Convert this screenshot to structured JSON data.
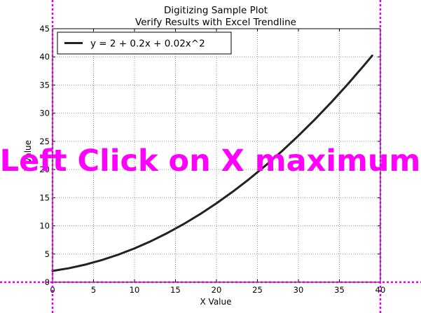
{
  "window": {
    "instruction": "Left Click on X maximum",
    "guide_color": "#dd00dd",
    "instruction_color": "#ff00ff"
  },
  "chart_data": {
    "type": "line",
    "title": "Digitizing Sample Plot",
    "subtitle": "Verify Results with Excel Trendline",
    "xlabel": "X Value",
    "ylabel": "Y Value",
    "xlim": [
      0,
      40
    ],
    "ylim": [
      0,
      45
    ],
    "x_ticks": [
      0,
      5,
      10,
      15,
      20,
      25,
      30,
      35,
      40
    ],
    "y_ticks": [
      0,
      5,
      10,
      15,
      20,
      25,
      30,
      35,
      40,
      45
    ],
    "grid": true,
    "legend_position": "top-left",
    "series": [
      {
        "name": "y = 2 + 0.2x + 0.02x^2",
        "color": "#222222",
        "x": [
          0,
          2,
          4,
          6,
          8,
          10,
          12,
          14,
          16,
          18,
          20,
          22,
          24,
          26,
          28,
          30,
          32,
          34,
          36,
          38,
          39
        ],
        "y": [
          2.0,
          2.48,
          3.12,
          3.92,
          4.88,
          6.0,
          7.28,
          8.72,
          10.32,
          12.08,
          14.0,
          16.08,
          18.32,
          20.72,
          23.28,
          26.0,
          28.88,
          31.92,
          35.12,
          38.48,
          40.22
        ]
      }
    ]
  }
}
